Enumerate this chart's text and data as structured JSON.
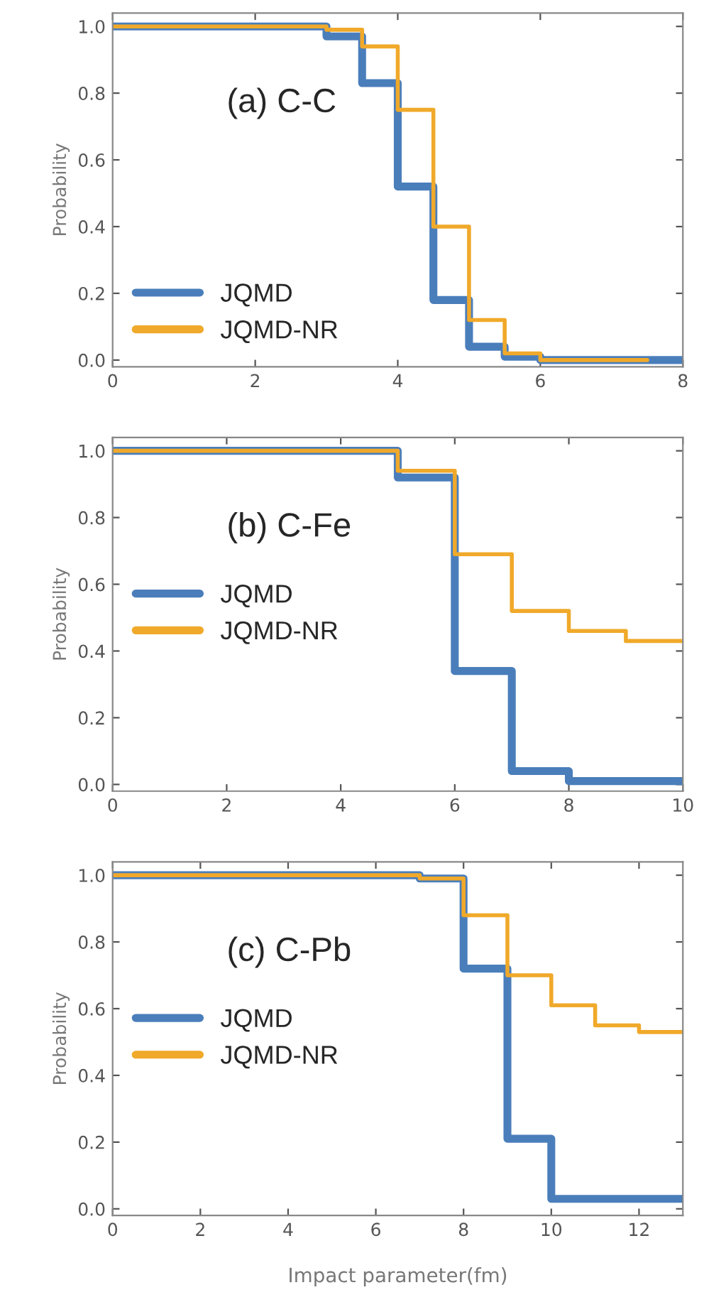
{
  "chart_data": [
    {
      "type": "step",
      "ylabel": "Probability",
      "annotations": [
        "(a) C-C"
      ],
      "xlim": [
        0,
        8
      ],
      "xticks": [
        0,
        2,
        4,
        6,
        8
      ],
      "ylim": [
        -0.02,
        1.04
      ],
      "yticks": [
        {
          "value": 0,
          "label": "0.0"
        },
        {
          "value": 0.2,
          "label": "0.2"
        },
        {
          "value": 0.4,
          "label": "0.4"
        },
        {
          "value": 0.6,
          "label": "0.6"
        },
        {
          "value": 0.8,
          "label": "0.8"
        },
        {
          "value": 1,
          "label": "1.0"
        }
      ],
      "legend": "bottom left",
      "grid": false,
      "tick_labels": "xy",
      "series": [
        {
          "name": "JQMD",
          "color": "#4a7ebb",
          "x": [
            0,
            3,
            3.5,
            4,
            4.5,
            5,
            5.5,
            6,
            8
          ],
          "values": [
            1.0,
            0.97,
            0.83,
            0.52,
            0.18,
            0.04,
            0.01,
            0.0,
            0.0
          ]
        },
        {
          "name": "JQMD-NR",
          "color": "#f0a92a",
          "x": [
            0,
            3,
            3.5,
            4,
            4.5,
            5,
            5.5,
            6,
            7.5
          ],
          "values": [
            1.0,
            0.99,
            0.94,
            0.75,
            0.4,
            0.12,
            0.02,
            0.0,
            0.0
          ]
        }
      ]
    },
    {
      "type": "step",
      "ylabel": "Probability",
      "annotations": [
        "(b) C-Fe"
      ],
      "xlim": [
        0,
        10
      ],
      "xticks": [
        0,
        2,
        4,
        6,
        8,
        10
      ],
      "ylim": [
        -0.02,
        1.04
      ],
      "yticks": [
        {
          "value": 0,
          "label": "0.0"
        },
        {
          "value": 0.2,
          "label": "0.2"
        },
        {
          "value": 0.4,
          "label": "0.4"
        },
        {
          "value": 0.6,
          "label": "0.6"
        },
        {
          "value": 0.8,
          "label": "0.8"
        },
        {
          "value": 1,
          "label": "1.0"
        }
      ],
      "legend": "left",
      "grid": false,
      "series": [
        {
          "name": "JQMD",
          "color": "#4a7ebb",
          "x": [
            0,
            5,
            6,
            7,
            8,
            9,
            10
          ],
          "values": [
            1.0,
            0.92,
            0.34,
            0.04,
            0.01,
            0.01,
            0.01
          ]
        },
        {
          "name": "JQMD-NR",
          "color": "#f0a92a",
          "x": [
            0,
            5,
            6,
            7,
            8,
            9,
            10
          ],
          "values": [
            1.0,
            0.94,
            0.69,
            0.52,
            0.46,
            0.43,
            0.43
          ]
        }
      ]
    },
    {
      "type": "step",
      "ylabel": "Probability",
      "xlabel": "Impact parameter(fm)",
      "annotations": [
        "(c) C-Pb"
      ],
      "xlim": [
        0,
        13
      ],
      "xticks": [
        0,
        2,
        4,
        6,
        8,
        10,
        12
      ],
      "ylim": [
        -0.02,
        1.04
      ],
      "yticks": [
        {
          "value": 0,
          "label": "0.0"
        },
        {
          "value": 0.2,
          "label": "0.2"
        },
        {
          "value": 0.4,
          "label": "0.4"
        },
        {
          "value": 0.6,
          "label": "0.6"
        },
        {
          "value": 0.8,
          "label": "0.8"
        },
        {
          "value": 1,
          "label": "1.0"
        }
      ],
      "legend": "left",
      "grid": false,
      "series": [
        {
          "name": "JQMD",
          "color": "#4a7ebb",
          "x": [
            0,
            7,
            8,
            9,
            10,
            11,
            13
          ],
          "values": [
            1.0,
            0.99,
            0.72,
            0.21,
            0.03,
            0.03,
            0.03
          ]
        },
        {
          "name": "JQMD-NR",
          "color": "#f0a92a",
          "x": [
            0,
            7,
            8,
            9,
            10,
            11,
            12,
            13
          ],
          "values": [
            1.0,
            0.99,
            0.88,
            0.7,
            0.61,
            0.55,
            0.53,
            0.53
          ]
        }
      ]
    }
  ]
}
